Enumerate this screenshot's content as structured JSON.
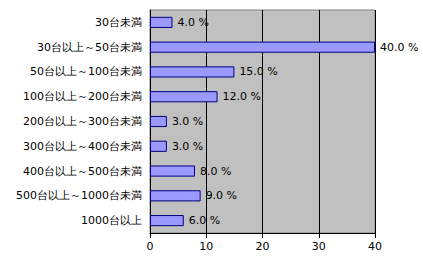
{
  "chart_data": {
    "type": "bar",
    "orientation": "horizontal",
    "categories": [
      "30台未満",
      "30台以上～50台未満",
      "50台以上～100台未満",
      "100台以上～200台未満",
      "200台以上～300台未満",
      "300台以上～400台未満",
      "400台以上～500台未満",
      "500台以上～1000台未満",
      "1000台以上"
    ],
    "values": [
      4,
      40,
      15,
      12,
      3,
      3,
      8,
      9,
      6
    ],
    "value_labels": [
      "4.0 %",
      "40.0 %",
      "15.0 %",
      "12.0 %",
      "3.0 %",
      "3.0 %",
      "8.0 %",
      "9.0 %",
      "6.0 %"
    ],
    "data_labels": true,
    "color": "#9999ff",
    "xlim": [
      0,
      40
    ],
    "xticks": [
      0,
      10,
      20,
      30,
      40
    ],
    "grid": true
  }
}
